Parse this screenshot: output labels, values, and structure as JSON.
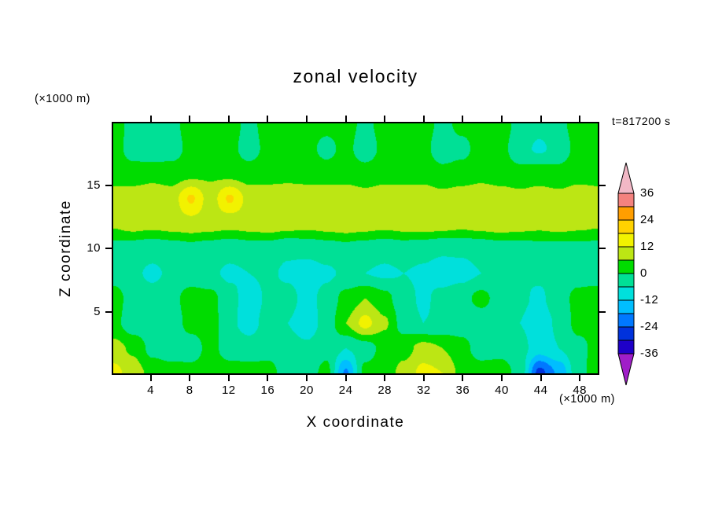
{
  "title": "zonal velocity",
  "time_label": "t=817200 s",
  "units": {
    "top_left": "(×1000 m)",
    "bottom_right": "(×1000 m)"
  },
  "x_axis": {
    "label": "X coordinate",
    "range": [
      0,
      50
    ],
    "ticks": [
      4,
      8,
      12,
      16,
      20,
      24,
      28,
      32,
      36,
      40,
      44,
      48
    ]
  },
  "z_axis": {
    "label": "Z coordinate",
    "range": [
      0,
      20
    ],
    "ticks": [
      5,
      10,
      15
    ]
  },
  "colorbar": {
    "tick_labels": [
      "36",
      "24",
      "12",
      "0",
      "-12",
      "-24",
      "-36"
    ],
    "band_boundaries": [
      36,
      30,
      24,
      18,
      12,
      6,
      0,
      -6,
      -12,
      -18,
      -24,
      -30,
      -36
    ],
    "band_colors": [
      "#f4827e",
      "#ff9e00",
      "#ffd200",
      "#f2f200",
      "#bce614",
      "#00dc00",
      "#00e096",
      "#00e0dc",
      "#00beff",
      "#0078ff",
      "#0032dc",
      "#1e00c8"
    ],
    "over_color": "#f2b8c6",
    "under_color": "#a01ec8",
    "outline_color": "#000000"
  },
  "chart_data": {
    "type": "heatmap",
    "title": "zonal velocity",
    "xlabel": "X coordinate (×1000 m)",
    "ylabel": "Z coordinate (×1000 m)",
    "time": "t=817200 s",
    "contour_interval": 6,
    "levels": [
      -36,
      -30,
      -24,
      -18,
      -12,
      -6,
      0,
      6,
      12,
      18,
      24,
      30,
      36
    ],
    "x": [
      0,
      2,
      4,
      6,
      8,
      10,
      12,
      14,
      16,
      18,
      20,
      22,
      24,
      26,
      28,
      30,
      32,
      34,
      36,
      38,
      40,
      42,
      44,
      46,
      48,
      50
    ],
    "z": [
      0,
      2,
      4,
      6,
      8,
      10,
      12,
      14,
      16,
      18,
      20
    ],
    "values": [
      [
        14,
        9,
        4,
        3,
        2,
        3,
        3,
        3,
        2,
        -3,
        -3,
        2,
        -19,
        2,
        3,
        8,
        14,
        12,
        4,
        3,
        3,
        -2,
        -26,
        -17,
        -2,
        3
      ],
      [
        8,
        5,
        -2,
        -4,
        -3,
        2,
        -3,
        -4,
        -2,
        -4,
        -5,
        -2,
        -6,
        -3,
        2,
        4,
        8,
        6,
        2,
        -3,
        -2,
        -4,
        -9,
        -6,
        -2,
        2
      ],
      [
        2,
        -4,
        -5,
        -3,
        2,
        3,
        -5,
        -8,
        -4,
        -6,
        -9,
        -4,
        6,
        14,
        7,
        -3,
        -6,
        -5,
        -3,
        -4,
        -3,
        -6,
        -9,
        -5,
        2,
        2
      ],
      [
        3,
        -3,
        -4,
        -2,
        3,
        2,
        -4,
        -9,
        -5,
        -4,
        -8,
        -4,
        2,
        6,
        2,
        -4,
        -7,
        -4,
        -2,
        2,
        -3,
        -5,
        -7,
        -3,
        2,
        3
      ],
      [
        -3,
        -5,
        -7,
        -5,
        -4,
        -5,
        -7,
        -6,
        -5,
        -7,
        -9,
        -7,
        -5,
        -6,
        -7,
        -6,
        -7,
        -9,
        -8,
        -6,
        -5,
        -6,
        -5,
        -4,
        -3,
        -3
      ],
      [
        -2,
        -3,
        -4,
        -3,
        -2,
        -3,
        -4,
        -3,
        -3,
        -5,
        -4,
        -3,
        -2,
        -3,
        -4,
        -3,
        -4,
        -5,
        -5,
        -4,
        -3,
        -3,
        -2,
        -2,
        -2,
        -2
      ],
      [
        7,
        9,
        8,
        9,
        10,
        9,
        8,
        9,
        10,
        9,
        8,
        9,
        10,
        9,
        8,
        9,
        10,
        9,
        8,
        9,
        10,
        9,
        8,
        9,
        8,
        7
      ],
      [
        8,
        9,
        10,
        9,
        19,
        9,
        19,
        10,
        9,
        8,
        9,
        10,
        9,
        8,
        9,
        10,
        9,
        8,
        9,
        10,
        9,
        8,
        9,
        8,
        9,
        8
      ],
      [
        4,
        3,
        4,
        3,
        4,
        5,
        4,
        3,
        4,
        5,
        4,
        3,
        4,
        3,
        4,
        3,
        4,
        2,
        3,
        4,
        3,
        2,
        3,
        2,
        4,
        4
      ],
      [
        3,
        -3,
        -5,
        -3,
        2,
        3,
        2,
        -3,
        2,
        3,
        2,
        -2,
        2,
        -4,
        2,
        3,
        2,
        -4,
        -2,
        3,
        2,
        -4,
        -7,
        -4,
        2,
        3
      ],
      [
        3,
        -2,
        -3,
        -2,
        3,
        3,
        3,
        -2,
        3,
        3,
        3,
        2,
        3,
        -2,
        3,
        3,
        3,
        -2,
        2,
        3,
        3,
        -2,
        -4,
        -2,
        3,
        3
      ]
    ]
  }
}
